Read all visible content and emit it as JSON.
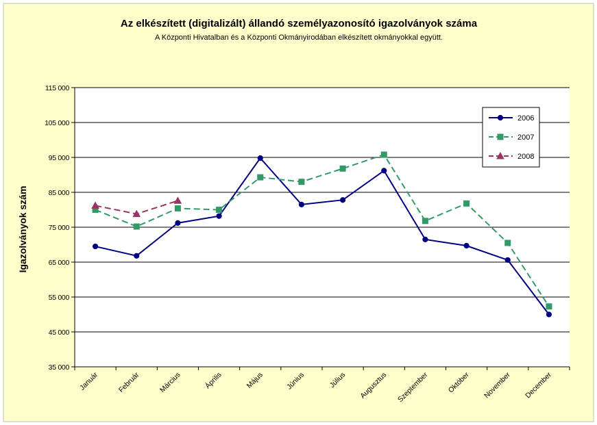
{
  "chart_data": {
    "type": "line",
    "title": "Az elkészített (digitalizált) állandó személyazonosító igazolványok száma",
    "subtitle": "A Központi Hivatalban és a Központi Okmányirodában elkészített okmányokkal együtt.",
    "ylabel": "Igazolványok szám",
    "xlabel": "",
    "categories": [
      "Január",
      "Február",
      "Március",
      "Április",
      "Május",
      "Június",
      "Július",
      "Augusztus",
      "Szeptember",
      "Október",
      "November",
      "December"
    ],
    "yticks": [
      "35 000",
      "45 000",
      "55 000",
      "65 000",
      "75 000",
      "85 000",
      "95 000",
      "105 000",
      "115 000"
    ],
    "ylim": [
      35000,
      115000
    ],
    "grid": true,
    "legend_position": "top-right",
    "series": [
      {
        "name": "2006",
        "color": "#000080",
        "marker": "circle",
        "dash": "solid",
        "values": [
          69500,
          66800,
          76200,
          78200,
          94800,
          81500,
          82800,
          91200,
          71500,
          69700,
          65600,
          50000
        ]
      },
      {
        "name": "2007",
        "color": "#339966",
        "marker": "square",
        "dash": "dashed",
        "values": [
          80000,
          75200,
          80400,
          80000,
          89300,
          88000,
          91800,
          95800,
          76800,
          81800,
          70500,
          52300
        ]
      },
      {
        "name": "2008",
        "color": "#993366",
        "marker": "triangle",
        "dash": "dashed",
        "values": [
          81200,
          78800,
          82600,
          null,
          null,
          null,
          null,
          null,
          null,
          null,
          null,
          null
        ]
      }
    ],
    "colors": {
      "page_bg": "#ffffcc",
      "plot_bg": "#ffffff",
      "grid": "#000000"
    }
  }
}
